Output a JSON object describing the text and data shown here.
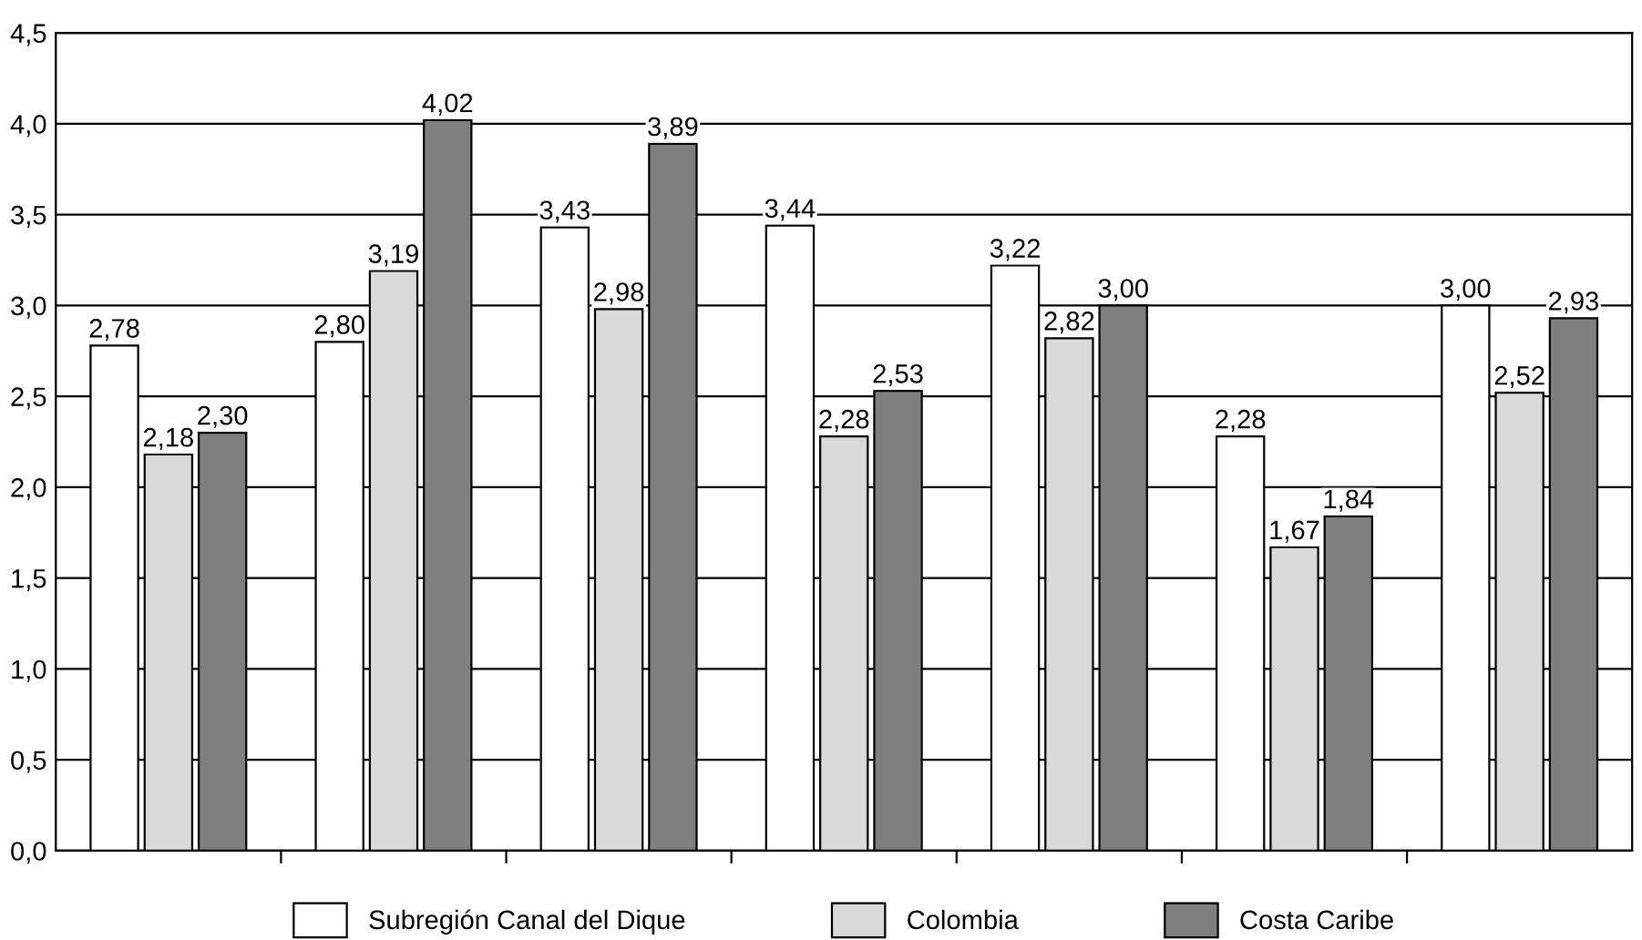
{
  "chart_data": {
    "type": "bar",
    "categories": [
      null,
      null,
      null,
      null,
      null,
      null,
      null
    ],
    "series": [
      {
        "name": "Subregión Canal del Dique",
        "color": "#ffffff",
        "values": [
          2.78,
          2.8,
          3.43,
          3.44,
          3.22,
          2.28,
          3.0
        ],
        "value_labels": [
          "2,78",
          "2,80",
          "3,43",
          "3,44",
          "3,22",
          "2,28",
          "3,00"
        ]
      },
      {
        "name": "Colombia",
        "color": "#d9d9d9",
        "values": [
          2.18,
          3.19,
          2.98,
          2.28,
          2.82,
          1.67,
          2.52
        ],
        "value_labels": [
          "2,18",
          "3,19",
          "2,98",
          "2,28",
          "2,82",
          "1,67",
          "2,52"
        ]
      },
      {
        "name": "Costa Caribe",
        "color": "#7f7f7f",
        "values": [
          2.3,
          4.02,
          3.89,
          2.53,
          3.0,
          1.84,
          2.93
        ],
        "value_labels": [
          "2,30",
          "4,02",
          "3,89",
          "2,53",
          "3,00",
          "1,84",
          "2,93"
        ]
      }
    ],
    "ylim": [
      0,
      4.5
    ],
    "yticks": [
      {
        "value": 0,
        "label": "0,0"
      },
      {
        "value": 0.5,
        "label": "0,5"
      },
      {
        "value": 1.0,
        "label": "1,0"
      },
      {
        "value": 1.5,
        "label": "1,5"
      },
      {
        "value": 2.0,
        "label": "2,0"
      },
      {
        "value": 2.5,
        "label": "2,5"
      },
      {
        "value": 3.0,
        "label": "3,0"
      },
      {
        "value": 3.5,
        "label": "3,5"
      },
      {
        "value": 4.0,
        "label": "4,0"
      },
      {
        "value": 4.5,
        "label": "4,5"
      }
    ],
    "grid": "y",
    "legend": "bottom"
  }
}
